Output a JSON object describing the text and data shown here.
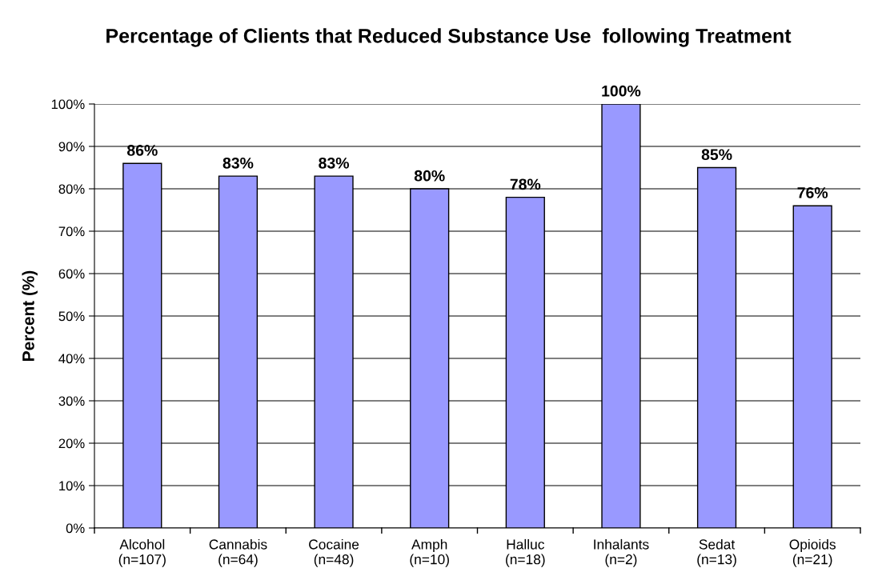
{
  "chart_data": {
    "type": "bar",
    "title": "Percentage of Clients that Reduced Substance Use  following Treatment",
    "ylabel": "Percent (%)",
    "categories": [
      "Alcohol\n(n=107)",
      "Cannabis\n(n=64)",
      "Cocaine\n(n=48)",
      "Amph\n(n=10)",
      "Halluc\n(n=18)",
      "Inhalants\n(n=2)",
      "Sedat\n(n=13)",
      "Opioids\n(n=21)"
    ],
    "values": [
      86,
      83,
      83,
      80,
      78,
      100,
      85,
      76
    ],
    "value_labels": [
      "86%",
      "83%",
      "83%",
      "80%",
      "78%",
      "100%",
      "85%",
      "76%"
    ],
    "color": "#9999ff",
    "ylim": [
      0,
      100
    ],
    "yticks": [
      {
        "value": 0,
        "label": "0%"
      },
      {
        "value": 10,
        "label": "10%"
      },
      {
        "value": 20,
        "label": "20%"
      },
      {
        "value": 30,
        "label": "30%"
      },
      {
        "value": 40,
        "label": "40%"
      },
      {
        "value": 50,
        "label": "50%"
      },
      {
        "value": 60,
        "label": "60%"
      },
      {
        "value": 70,
        "label": "70%"
      },
      {
        "value": 80,
        "label": "80%"
      },
      {
        "value": 90,
        "label": "90%"
      },
      {
        "value": 100,
        "label": "100%"
      }
    ],
    "grid": "y"
  }
}
